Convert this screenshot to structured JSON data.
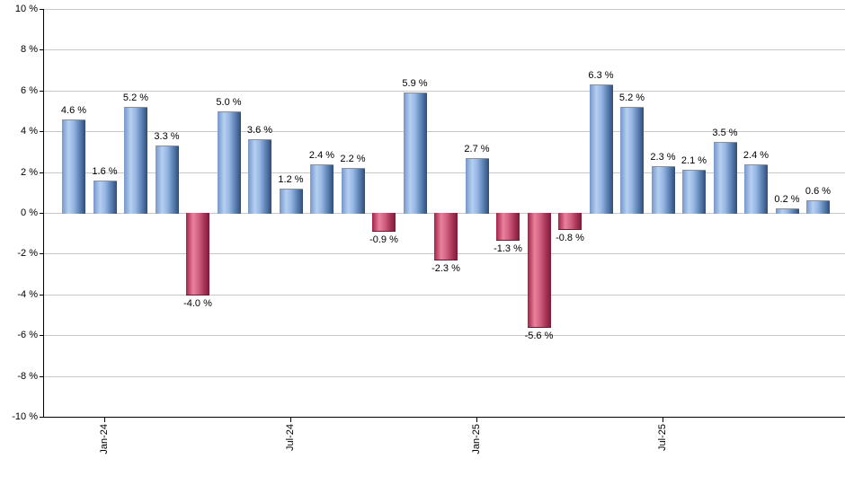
{
  "chart_data": {
    "type": "bar",
    "title": "",
    "xlabel": "",
    "ylabel": "",
    "unit": "%",
    "grid": true,
    "ylim": [
      -10,
      10
    ],
    "ytick_step": 2,
    "y_tick_labels": [
      "10 %",
      "8 %",
      "6 %",
      "4 %",
      "2 %",
      "0 %",
      "-2 %",
      "-4 %",
      "-6 %",
      "-8 %",
      "-10 %"
    ],
    "x_tick_labels": [
      {
        "bar_index": 1,
        "label": "Jan-24"
      },
      {
        "bar_index": 7,
        "label": "Jul-24"
      },
      {
        "bar_index": 13,
        "label": "Jan-25"
      },
      {
        "bar_index": 19,
        "label": "Jul-25"
      }
    ],
    "values": [
      4.6,
      1.6,
      5.2,
      3.3,
      -4.0,
      5.0,
      3.6,
      1.2,
      2.4,
      2.2,
      -0.9,
      5.9,
      -2.3,
      2.7,
      -1.3,
      -5.6,
      -0.8,
      6.3,
      5.2,
      2.3,
      2.1,
      3.5,
      2.4,
      0.2,
      0.6
    ],
    "bar_labels": [
      "4.6 %",
      "1.6 %",
      "5.2 %",
      "3.3 %",
      "-4.0 %",
      "5.0 %",
      "3.6 %",
      "1.2 %",
      "2.4 %",
      "2.2 %",
      "-0.9 %",
      "5.9 %",
      "-2.3 %",
      "2.7 %",
      "-1.3 %",
      "-5.6 %",
      "-0.8 %",
      "6.3 %",
      "5.2 %",
      "2.3 %",
      "2.1 %",
      "3.5 %",
      "2.4 %",
      "0.2 %",
      "0.6 %"
    ],
    "colors": {
      "positive_base": "#6f94c6",
      "negative_base": "#c23a5f",
      "gridline": "#c8c8c8",
      "axis": "#000000",
      "label_text": "#000000",
      "positive_gradient_stops": [
        [
          "0%",
          "#7596c8"
        ],
        [
          "28%",
          "#b5cff2"
        ],
        [
          "50%",
          "#97b6e2"
        ],
        [
          "72%",
          "#6288bb"
        ],
        [
          "100%",
          "#2e4d7a"
        ]
      ],
      "negative_gradient_stops": [
        [
          "0%",
          "#a3234a"
        ],
        [
          "30%",
          "#e8829c"
        ],
        [
          "55%",
          "#cf5d7e"
        ],
        [
          "78%",
          "#a63457"
        ],
        [
          "100%",
          "#7d1a38"
        ]
      ]
    }
  }
}
